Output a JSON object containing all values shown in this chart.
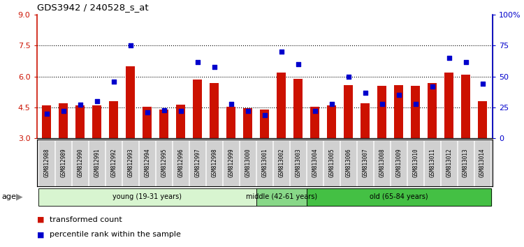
{
  "title": "GDS3942 / 240528_s_at",
  "samples": [
    "GSM812988",
    "GSM812989",
    "GSM812990",
    "GSM812991",
    "GSM812992",
    "GSM812993",
    "GSM812994",
    "GSM812995",
    "GSM812996",
    "GSM812997",
    "GSM812998",
    "GSM812999",
    "GSM813000",
    "GSM813001",
    "GSM813002",
    "GSM813003",
    "GSM813004",
    "GSM813005",
    "GSM813006",
    "GSM813007",
    "GSM813008",
    "GSM813009",
    "GSM813010",
    "GSM813011",
    "GSM813012",
    "GSM813013",
    "GSM813014"
  ],
  "bar_values": [
    4.6,
    4.7,
    4.6,
    4.6,
    4.8,
    6.5,
    4.55,
    4.4,
    4.65,
    5.85,
    5.7,
    4.55,
    4.45,
    4.4,
    6.2,
    5.9,
    4.55,
    4.6,
    5.6,
    4.7,
    5.55,
    5.6,
    5.55,
    5.7,
    6.2,
    6.1,
    4.8
  ],
  "percentile_values": [
    20,
    22,
    27,
    30,
    46,
    75,
    21,
    23,
    22,
    62,
    58,
    28,
    22,
    19,
    70,
    60,
    22,
    28,
    50,
    37,
    28,
    35,
    28,
    42,
    65,
    62,
    44
  ],
  "groups": [
    {
      "label": "young (19-31 years)",
      "start": 0,
      "end": 13,
      "color": "#c8f0c8"
    },
    {
      "label": "middle (42-61 years)",
      "start": 13,
      "end": 16,
      "color": "#90d890"
    },
    {
      "label": "old (65-84 years)",
      "start": 16,
      "end": 27,
      "color": "#50c850"
    }
  ],
  "ylim_left": [
    3,
    9
  ],
  "ylim_right": [
    0,
    100
  ],
  "yticks_left": [
    3,
    4.5,
    6,
    7.5,
    9
  ],
  "yticks_right": [
    0,
    25,
    50,
    75,
    100
  ],
  "bar_color": "#cc1100",
  "dot_color": "#0000cc",
  "bg_color": "#ffffff",
  "xlabel_color": "#cc1100",
  "ylabel_right_color": "#0000cc",
  "label_tc": "transformed count",
  "label_pr": "percentile rank within the sample",
  "cell_bg": "#d0d0d0",
  "young_color": "#d8f5d0",
  "middle_color": "#88d888",
  "old_color": "#44c044"
}
